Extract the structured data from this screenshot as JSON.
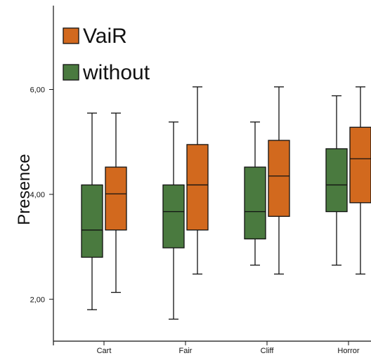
{
  "chart_data": {
    "type": "box",
    "title": "",
    "xlabel": "",
    "ylabel": "Presence",
    "ylim": [
      1.2,
      7.6
    ],
    "yticks": [
      2.0,
      4.0,
      6.0
    ],
    "ytick_labels": [
      "2,00",
      "4,00",
      "6,00"
    ],
    "categories": [
      "Cart",
      "Fair",
      "Cliff",
      "Horror"
    ],
    "legend_position": "top-left",
    "grid": false,
    "series": [
      {
        "name": "without",
        "color": "#4a7a3f",
        "boxes": [
          {
            "min": 1.8,
            "q1": 2.8,
            "median": 3.32,
            "q3": 4.18,
            "max": 5.55
          },
          {
            "min": 1.62,
            "q1": 2.98,
            "median": 3.67,
            "q3": 4.18,
            "max": 5.38
          },
          {
            "min": 2.65,
            "q1": 3.15,
            "median": 3.67,
            "q3": 4.52,
            "max": 5.38
          },
          {
            "min": 2.65,
            "q1": 3.67,
            "median": 4.18,
            "q3": 4.87,
            "max": 5.88
          }
        ]
      },
      {
        "name": "VaiR",
        "color": "#d2691e",
        "boxes": [
          {
            "min": 2.13,
            "q1": 3.32,
            "median": 4.01,
            "q3": 4.52,
            "max": 5.55
          },
          {
            "min": 2.48,
            "q1": 3.32,
            "median": 4.18,
            "q3": 4.95,
            "max": 6.05
          },
          {
            "min": 2.48,
            "q1": 3.58,
            "median": 4.35,
            "q3": 5.03,
            "max": 6.05
          },
          {
            "min": 2.48,
            "q1": 3.84,
            "median": 4.68,
            "q3": 5.28,
            "max": 6.05
          }
        ]
      }
    ],
    "legend_order": [
      "VaiR",
      "without"
    ]
  }
}
